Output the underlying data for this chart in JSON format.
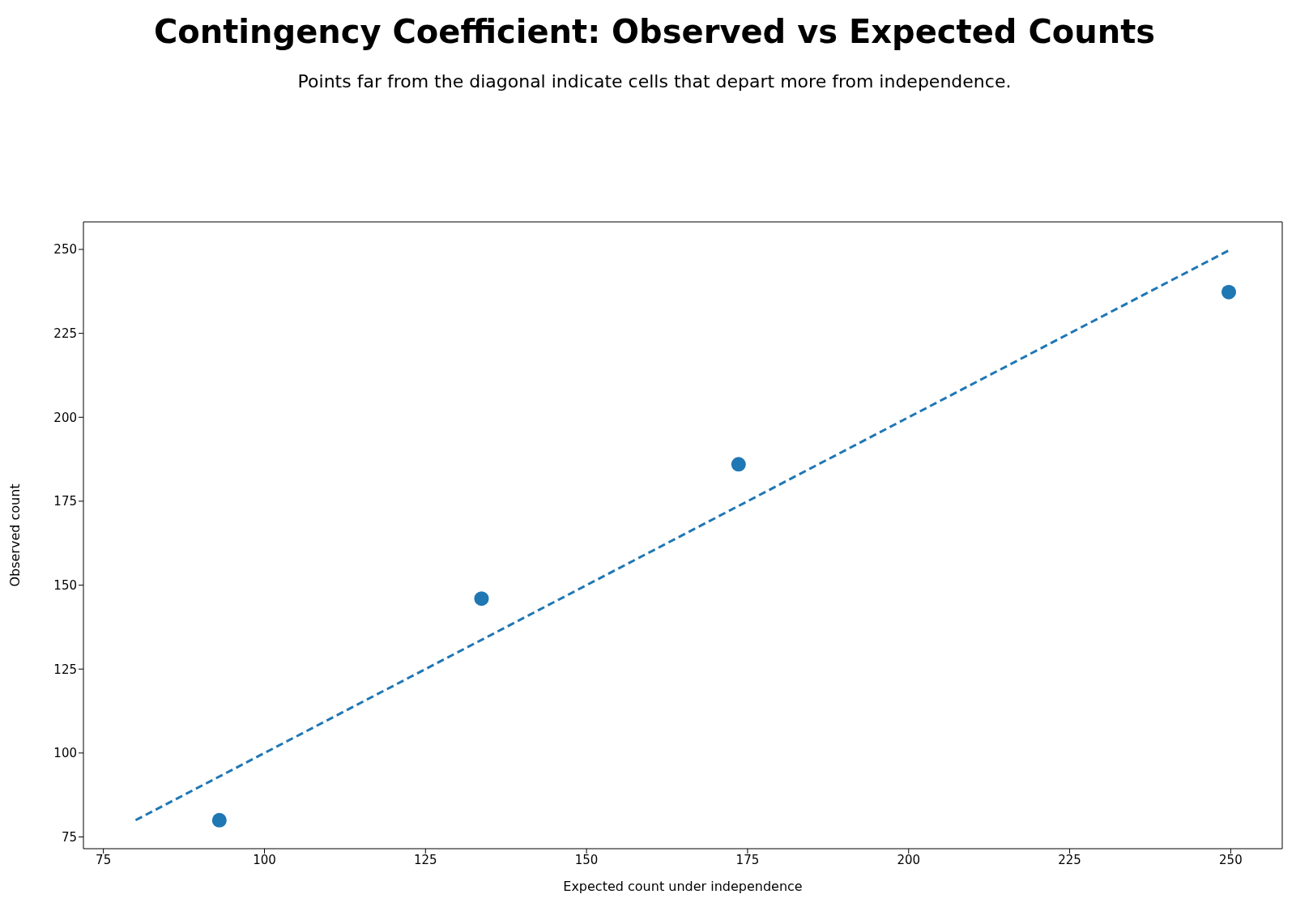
{
  "chart_data": {
    "type": "scatter",
    "title": "Contingency Coefficient: Observed vs Expected Counts",
    "subtitle": "Points far from the diagonal indicate cells that depart more from independence.",
    "xlabel": "Expected count under independence",
    "ylabel": "Observed count",
    "xlim": [
      71.9,
      258
    ],
    "ylim": [
      71.5,
      258.2
    ],
    "xticks": [
      75,
      100,
      125,
      150,
      175,
      200,
      225,
      250
    ],
    "yticks": [
      75,
      100,
      125,
      150,
      175,
      200,
      225,
      250
    ],
    "grid": false,
    "series": [
      {
        "type": "line",
        "color": "#1f77b4",
        "x": [
          80,
          249.7
        ],
        "values": [
          80,
          249.7
        ],
        "line_style": "dashed",
        "marker": "none"
      },
      {
        "color": "#1f77b4",
        "x": [
          93,
          133.7,
          173.6,
          249.7
        ],
        "values": [
          80,
          146,
          186,
          237.3
        ],
        "marker": "circle"
      }
    ]
  }
}
